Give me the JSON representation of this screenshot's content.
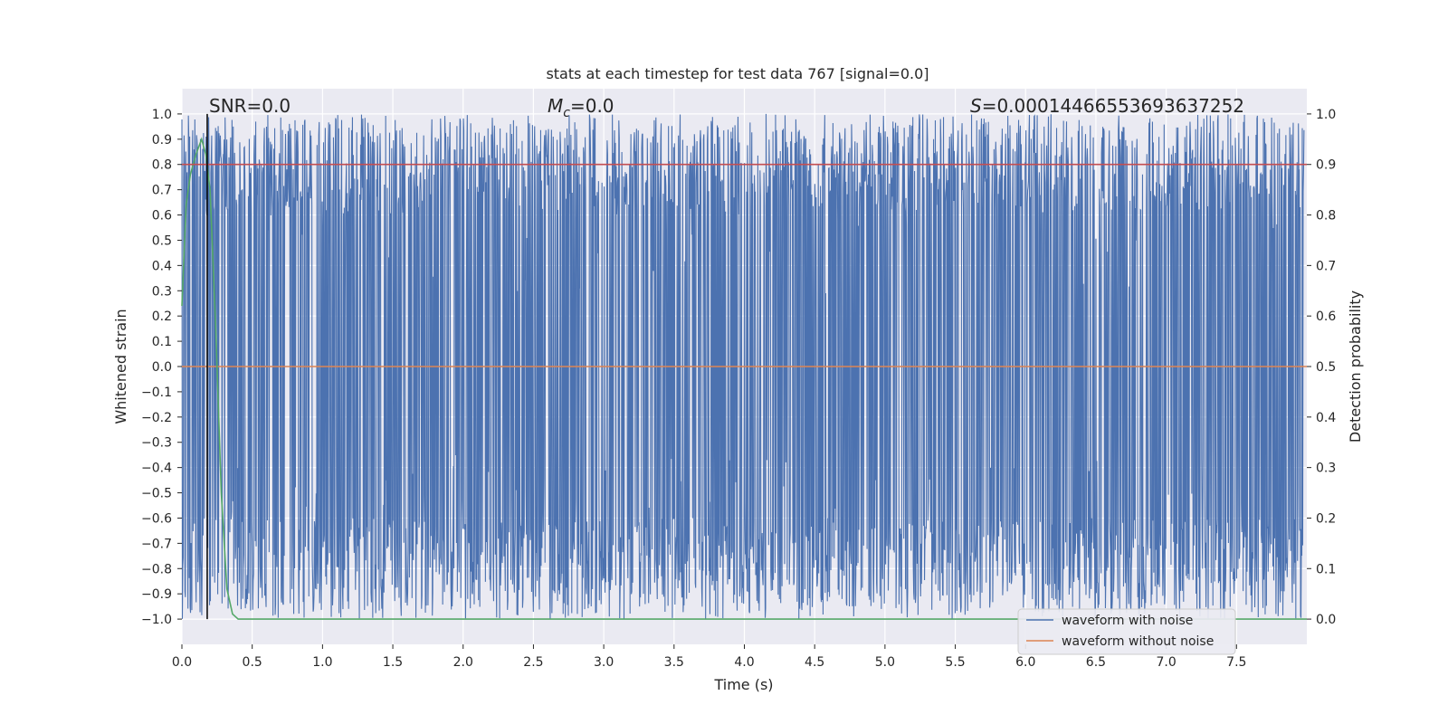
{
  "chart_data": {
    "type": "line",
    "title": "stats at each timestep for test data 767 [signal=0.0]",
    "xlabel": "Time (s)",
    "ylabel_left": "Whitened strain",
    "ylabel_right": "Detection probability",
    "xlim": [
      0.0,
      8.0
    ],
    "ylim_left": [
      -1.1,
      1.1
    ],
    "ylim_right": [
      -0.05,
      1.05
    ],
    "x_ticks": [
      "0.0",
      "0.5",
      "1.0",
      "1.5",
      "2.0",
      "2.5",
      "3.0",
      "3.5",
      "4.0",
      "4.5",
      "5.0",
      "5.5",
      "6.0",
      "6.5",
      "7.0",
      "7.5"
    ],
    "y_ticks_left": [
      "1.0",
      "0.9",
      "0.8",
      "0.7",
      "0.6",
      "0.5",
      "0.4",
      "0.3",
      "0.2",
      "0.1",
      "0.0",
      "−0.1",
      "−0.2",
      "−0.3",
      "−0.4",
      "−0.5",
      "−0.6",
      "−0.7",
      "−0.8",
      "−0.9",
      "−1.0"
    ],
    "y_ticks_right": [
      "1.0",
      "0.9",
      "0.8",
      "0.7",
      "0.6",
      "0.5",
      "0.4",
      "0.3",
      "0.2",
      "0.1",
      "0.0"
    ],
    "grid": true,
    "legend_placement": "lower-right",
    "annotations": {
      "snr": "SNR=0.0",
      "mc_symbol": "M",
      "mc_sub": "c",
      "mc_value": "=0.0",
      "s_symbol": "S",
      "s_value": "=0.00014466553693637252"
    },
    "marker_line_x": 0.18,
    "series": [
      {
        "name": "waveform with noise",
        "color": "#4c72b0",
        "axis": "left",
        "description_values": {
          "typical_upper": [
            0.6,
            1.0
          ],
          "typical_lower": [
            -1.0,
            -0.6
          ]
        }
      },
      {
        "name": "waveform without noise",
        "color": "#dd8452",
        "axis": "left",
        "x": [
          0.0,
          8.0
        ],
        "y": [
          0.0,
          0.0
        ]
      },
      {
        "color": "#55a868",
        "axis": "right",
        "x": [
          0.0,
          0.03,
          0.06,
          0.1,
          0.14,
          0.17,
          0.2,
          0.24,
          0.28,
          0.32,
          0.36,
          0.4,
          8.0
        ],
        "y": [
          0.62,
          0.82,
          0.88,
          0.92,
          0.95,
          0.92,
          0.85,
          0.58,
          0.25,
          0.06,
          0.01,
          0.0,
          0.0
        ]
      },
      {
        "color": "#c44e52",
        "axis": "right",
        "x": [
          0.0,
          8.0
        ],
        "y": [
          0.9,
          0.9
        ]
      }
    ]
  }
}
